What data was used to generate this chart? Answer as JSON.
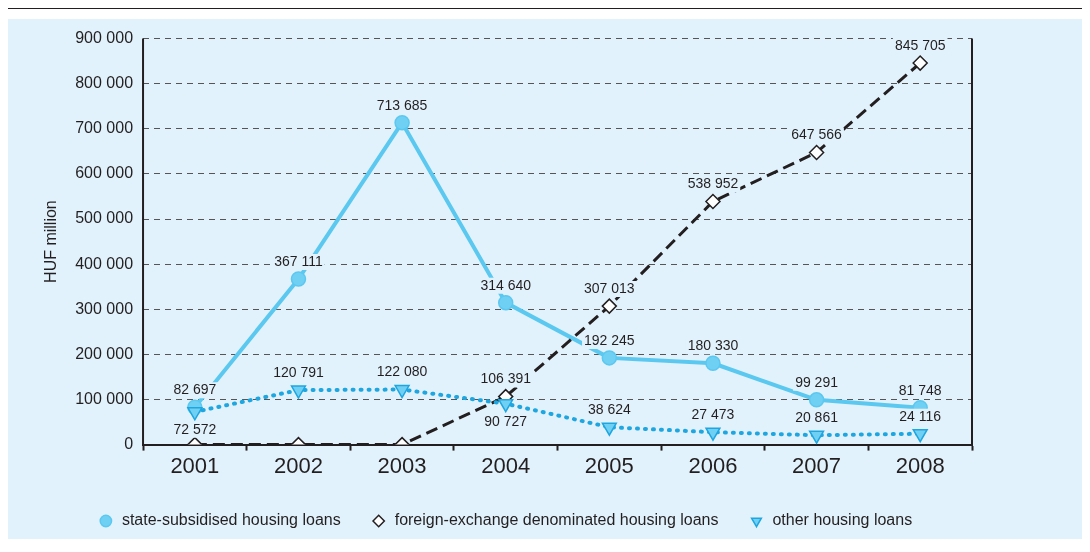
{
  "chart_data": {
    "type": "line",
    "ylabel": "HUF million",
    "categories": [
      "2001",
      "2002",
      "2003",
      "2004",
      "2005",
      "2006",
      "2007",
      "2008"
    ],
    "ylim": [
      0,
      900000
    ],
    "yticks": [
      {
        "value": 0,
        "label": "0"
      },
      {
        "value": 100000,
        "label": "100 000"
      },
      {
        "value": 200000,
        "label": "200 000"
      },
      {
        "value": 300000,
        "label": "300 000"
      },
      {
        "value": 400000,
        "label": "400 000"
      },
      {
        "value": 500000,
        "label": "500 000"
      },
      {
        "value": 600000,
        "label": "600 000"
      },
      {
        "value": 700000,
        "label": "700 000"
      },
      {
        "value": 800000,
        "label": "800 000"
      },
      {
        "value": 900000,
        "label": "900 000"
      }
    ],
    "grid": "y",
    "legend": "bottom",
    "series": [
      {
        "name": "state-subsidised housing loans",
        "color": "#5bc8f0",
        "marker": "circle",
        "line_style": "solid",
        "values": [
          82697,
          367111,
          713685,
          314640,
          192245,
          180330,
          99291,
          81748
        ],
        "value_labels": [
          "82 697",
          "367 111",
          "713 685",
          "314 640",
          "192 245",
          "180 330",
          "99 291",
          "81 748"
        ]
      },
      {
        "name": "foreign-exchange denominated housing loans",
        "color": "#231f20",
        "marker": "diamond",
        "line_style": "dashed",
        "values": [
          0,
          0,
          0,
          106391,
          307013,
          538952,
          647566,
          845705
        ],
        "value_labels": [
          null,
          null,
          null,
          "106 391",
          "307 013",
          "538 952",
          "647 566",
          "845 705"
        ]
      },
      {
        "name": "other housing loans",
        "color": "#1ea6e0",
        "marker": "triangle",
        "line_style": "dotted",
        "values": [
          72572,
          120791,
          122080,
          90727,
          38624,
          27473,
          20861,
          24116
        ],
        "value_labels": [
          "72 572",
          "120 791",
          "122 080",
          "90 727",
          "38 624",
          "27 473",
          "20 861",
          "24 116"
        ]
      }
    ]
  }
}
